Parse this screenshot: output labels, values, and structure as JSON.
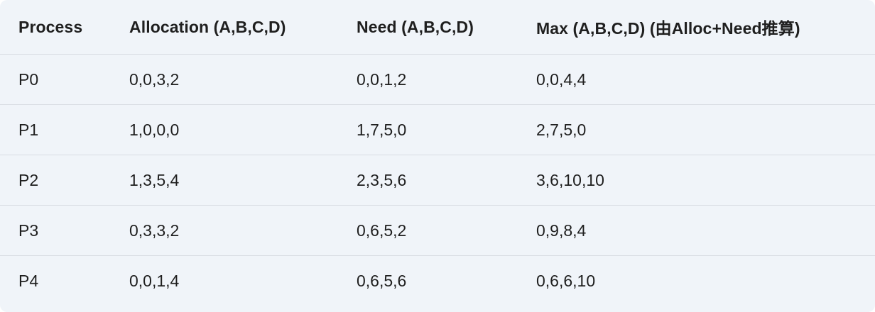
{
  "table": {
    "headers": [
      "Process",
      "Allocation (A,B,C,D)",
      "Need (A,B,C,D)",
      "Max (A,B,C,D) (由Alloc+Need推算)"
    ],
    "rows": [
      [
        "P0",
        "0,0,3,2",
        "0,0,1,2",
        "0,0,4,4"
      ],
      [
        "P1",
        "1,0,0,0",
        "1,7,5,0",
        "2,7,5,0"
      ],
      [
        "P2",
        "1,3,5,4",
        "2,3,5,6",
        "3,6,10,10"
      ],
      [
        "P3",
        "0,3,3,2",
        "0,6,5,2",
        "0,9,8,4"
      ],
      [
        "P4",
        "0,0,1,4",
        "0,6,5,6",
        "0,6,6,10"
      ]
    ]
  }
}
